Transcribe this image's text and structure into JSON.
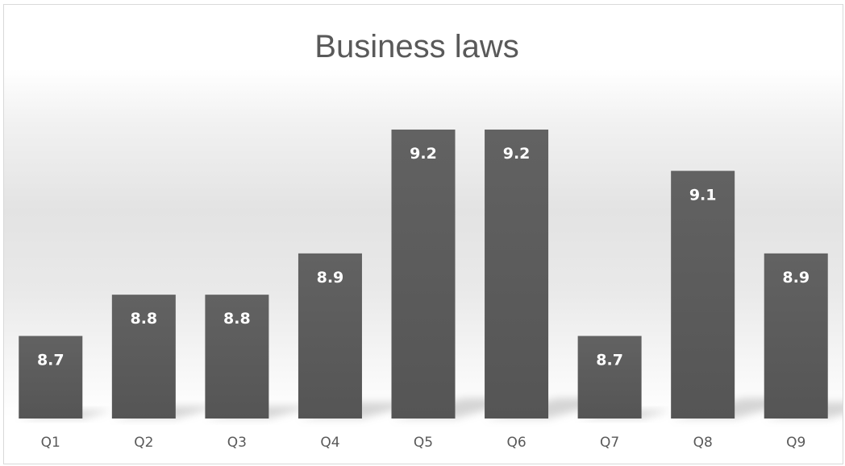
{
  "chart_data": {
    "type": "bar",
    "title": "Business laws",
    "categories": [
      "Q1",
      "Q2",
      "Q3",
      "Q4",
      "Q5",
      "Q6",
      "Q7",
      "Q8",
      "Q9"
    ],
    "values": [
      8.7,
      8.8,
      8.8,
      8.9,
      9.2,
      9.2,
      8.7,
      9.1,
      8.9
    ],
    "data_labels": [
      "8.7",
      "8.8",
      "8.8",
      "8.9",
      "9.2",
      "9.2",
      "8.7",
      "9.1",
      "8.9"
    ],
    "ylim": [
      8.5,
      9.2
    ],
    "grid": false,
    "legend": "none",
    "colors": {
      "bar": "#555555",
      "bar_light": "#626262",
      "title": "#595959",
      "tick": "#595959",
      "label": "#ffffff"
    }
  }
}
